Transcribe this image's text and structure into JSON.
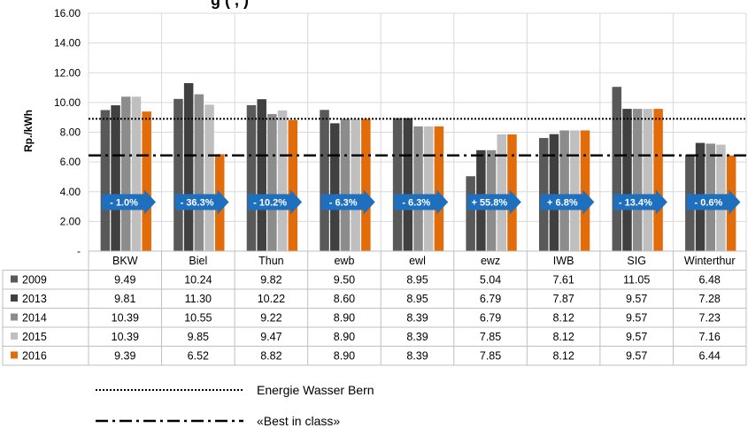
{
  "title_fragment": "g     (   ,          )",
  "chart_data": {
    "type": "bar",
    "ylabel": "Rp./kWh",
    "ylim": [
      0,
      16
    ],
    "yticks": [
      "-",
      "2.00",
      "4.00",
      "6.00",
      "8.00",
      "10.00",
      "12.00",
      "14.00",
      "16.00"
    ],
    "grid": true,
    "categories": [
      "BKW",
      "Biel",
      "Thun",
      "ewb",
      "ewl",
      "ewz",
      "IWB",
      "SIG",
      "Winterthur"
    ],
    "series": [
      {
        "name": "2009",
        "color": "#595959",
        "values": [
          9.49,
          10.24,
          9.82,
          9.5,
          8.95,
          5.04,
          7.61,
          11.05,
          6.48
        ],
        "labels": [
          "9.49",
          "10.24",
          "9.82",
          "9.50",
          "8.95",
          "5.04",
          "7.61",
          "11.05",
          "6.48"
        ]
      },
      {
        "name": "2013",
        "color": "#404040",
        "values": [
          9.81,
          11.3,
          10.22,
          8.6,
          8.95,
          6.79,
          7.87,
          9.57,
          7.28
        ],
        "labels": [
          "9.81",
          "11.30",
          "10.22",
          "8.60",
          "8.95",
          "6.79",
          "7.87",
          "9.57",
          "7.28"
        ]
      },
      {
        "name": "2014",
        "color": "#8c8c8c",
        "values": [
          10.39,
          10.55,
          9.22,
          8.9,
          8.39,
          6.79,
          8.12,
          9.57,
          7.23
        ],
        "labels": [
          "10.39",
          "10.55",
          "9.22",
          "8.90",
          "8.39",
          "6.79",
          "8.12",
          "9.57",
          "7.23"
        ]
      },
      {
        "name": "2015",
        "color": "#bfbfbf",
        "values": [
          10.39,
          9.85,
          9.47,
          8.9,
          8.39,
          7.85,
          8.12,
          9.57,
          7.16
        ],
        "labels": [
          "10.39",
          "9.85",
          "9.47",
          "8.90",
          "8.39",
          "7.85",
          "8.12",
          "9.57",
          "7.16"
        ]
      },
      {
        "name": "2016",
        "color": "#e36c0a",
        "values": [
          9.39,
          6.52,
          8.82,
          8.9,
          8.39,
          7.85,
          8.12,
          9.57,
          6.44
        ],
        "labels": [
          "9.39",
          "6.52",
          "8.82",
          "8.90",
          "8.39",
          "7.85",
          "8.12",
          "9.57",
          "6.44"
        ]
      }
    ],
    "change_labels": [
      "- 1.0%",
      "- 36.3%",
      "- 10.2%",
      "- 6.3%",
      "- 6.3%",
      "+ 55.8%",
      "+ 6.8%",
      "- 13.4%",
      "- 0.6%"
    ],
    "arrow_color": "#1f6fbf",
    "reference_lines": [
      {
        "name": "Energie Wasser Bern",
        "value": 8.9,
        "style": "dotted"
      },
      {
        "name": "«Best in class»",
        "value": 6.44,
        "style": "dash-dot"
      }
    ]
  }
}
